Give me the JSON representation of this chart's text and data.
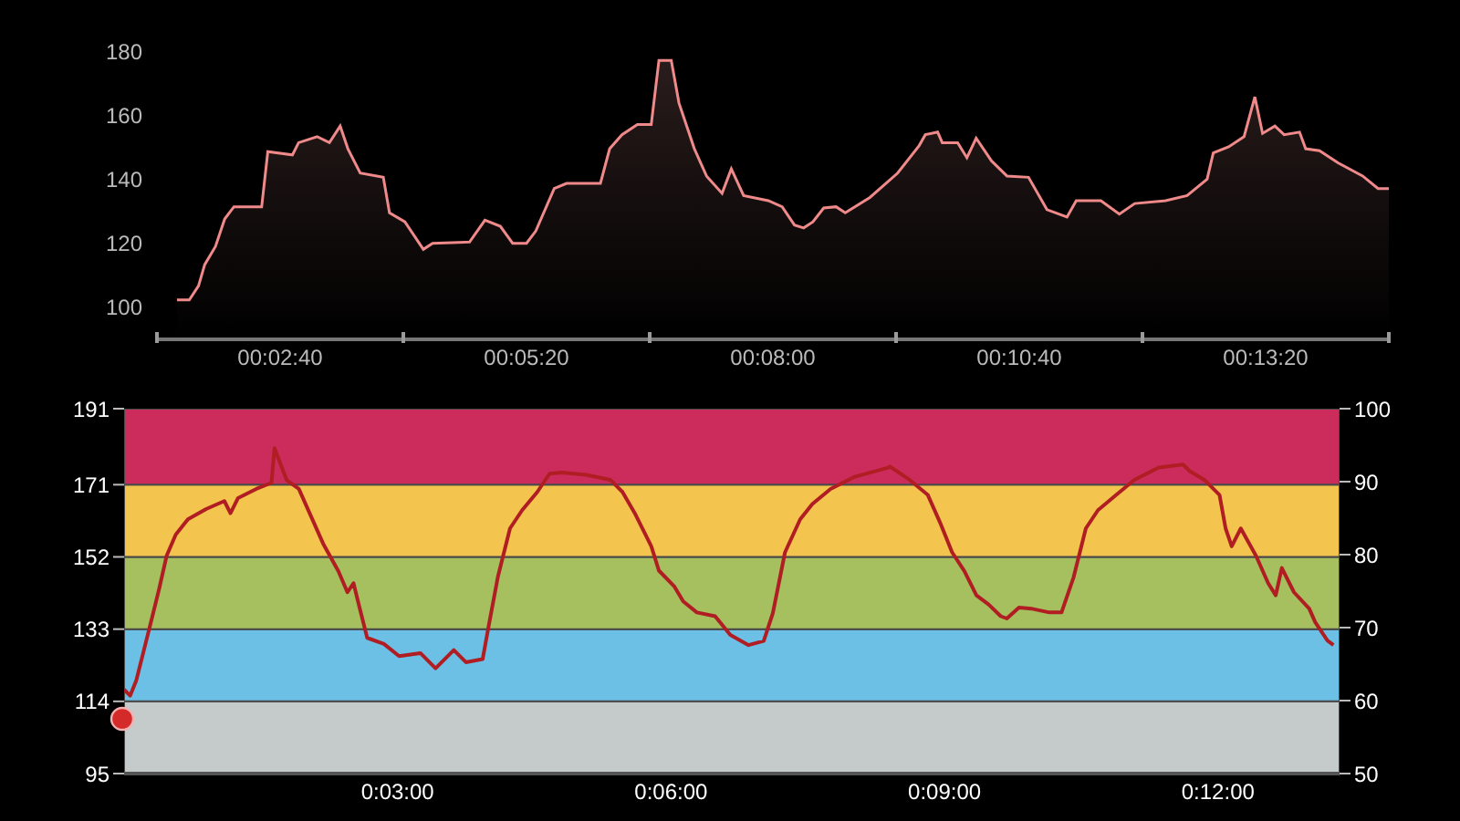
{
  "chart_data": [
    {
      "type": "area",
      "color": "#f08a8a",
      "x": [
        93,
        101,
        107,
        111,
        118,
        124,
        130,
        148,
        152,
        168,
        172,
        184,
        192,
        199,
        204,
        212,
        227,
        231,
        241,
        253,
        259,
        283,
        293,
        303,
        311,
        320,
        326,
        338,
        346,
        368,
        374,
        382,
        392,
        401,
        406,
        414,
        419,
        429,
        437,
        447,
        453,
        461,
        477,
        486,
        494,
        500,
        506,
        513,
        521,
        527,
        543,
        561,
        575,
        579,
        587,
        590,
        600,
        606,
        612,
        622,
        632,
        646,
        658,
        671,
        677,
        693,
        705,
        715,
        735,
        749,
        762,
        766,
        776,
        786,
        793,
        798,
        806,
        812,
        822,
        826,
        835,
        847,
        863,
        873,
        880
      ],
      "values": [
        102.3,
        102.3,
        106.7,
        113.3,
        119,
        127.6,
        131.4,
        131.4,
        148.6,
        147.6,
        151.4,
        153.3,
        151.4,
        156.6,
        149.5,
        141.9,
        140.6,
        129.5,
        126.7,
        118.1,
        120,
        120.4,
        127.2,
        125.3,
        120,
        120,
        123.8,
        137.1,
        138.7,
        138.7,
        149.5,
        153.9,
        157.1,
        157.1,
        177.1,
        177.1,
        163.8,
        149.5,
        140.9,
        135.6,
        143.2,
        134.9,
        133.3,
        131.4,
        125.7,
        124.8,
        126.7,
        131,
        131.4,
        129.5,
        134.3,
        141.9,
        150.5,
        153.9,
        154.7,
        151.4,
        151.4,
        146.7,
        152.8,
        145.7,
        141,
        140.6,
        130.5,
        128.2,
        133.3,
        133.3,
        129.1,
        132.4,
        133.3,
        134.9,
        140,
        148.2,
        150.1,
        153.3,
        165.7,
        154.3,
        156.6,
        153.9,
        154.7,
        149.5,
        148.9,
        145.1,
        141,
        137.1,
        137.1
      ],
      "xlim": [
        80,
        880
      ],
      "xticks": [
        {
          "value": 80,
          "label": null
        },
        {
          "value": 160,
          "label": "00:02:40"
        },
        {
          "value": 240,
          "label": null
        },
        {
          "value": 320,
          "label": "00:05:20"
        },
        {
          "value": 400,
          "label": null
        },
        {
          "value": 480,
          "label": "00:08:00"
        },
        {
          "value": 560,
          "label": null
        },
        {
          "value": 640,
          "label": "00:10:40"
        },
        {
          "value": 720,
          "label": null
        },
        {
          "value": 800,
          "label": "00:13:20"
        },
        {
          "value": 880,
          "label": null
        }
      ],
      "ylim": [
        90,
        180
      ],
      "yticks": [
        100,
        120,
        140,
        160,
        180
      ]
    },
    {
      "type": "line",
      "color": "#b01e23",
      "x": [
        0,
        4,
        8,
        14,
        18,
        23,
        28,
        34,
        42,
        54,
        66,
        70,
        75,
        87,
        97,
        99,
        107,
        115,
        123,
        131,
        141,
        147,
        151,
        155,
        160,
        171,
        181,
        195,
        205,
        217,
        225,
        236,
        240,
        246,
        254,
        262,
        272,
        280,
        288,
        304,
        320,
        328,
        336,
        347,
        352,
        362,
        368,
        377,
        389,
        399,
        411,
        421,
        427,
        435,
        445,
        453,
        465,
        481,
        503,
        504,
        517,
        529,
        537,
        545,
        553,
        561,
        569,
        577,
        581,
        589,
        597,
        609,
        617,
        625,
        633,
        641,
        653,
        665,
        681,
        697,
        701,
        711,
        721,
        725,
        729,
        735,
        745,
        753,
        758,
        762,
        770,
        780,
        784,
        792,
        796
      ],
      "values": [
        117.1,
        115.5,
        119.5,
        129,
        135.4,
        143.5,
        152.3,
        157.9,
        161.9,
        164.6,
        166.7,
        163.5,
        167.5,
        169.9,
        171.5,
        180.6,
        172.2,
        169.9,
        162.7,
        155.5,
        148.3,
        142.7,
        145.1,
        138.6,
        130.7,
        129.1,
        125.9,
        126.7,
        122.7,
        127.5,
        124.3,
        125.1,
        133.9,
        146.7,
        159.5,
        164.3,
        169.1,
        173.9,
        174.2,
        173.6,
        172.3,
        169.1,
        163.6,
        154.8,
        148.4,
        144.3,
        140.3,
        137.4,
        136.4,
        131.5,
        128.8,
        129.9,
        137.2,
        153.2,
        161.9,
        165.9,
        169.9,
        173.1,
        175.5,
        175.8,
        172.3,
        168.3,
        161.1,
        153.2,
        148.3,
        141.9,
        139.5,
        136.4,
        135.8,
        138.7,
        138.4,
        137.4,
        137.4,
        146.7,
        159.5,
        164.3,
        168.3,
        172.3,
        175.5,
        176.3,
        174.7,
        172.3,
        168.3,
        159.5,
        154.8,
        159.5,
        152.3,
        145.1,
        141.9,
        149.1,
        142.7,
        138.4,
        134.8,
        130,
        128.8
      ],
      "xlim": [
        0,
        800
      ],
      "xticks": [
        {
          "value": 180,
          "label": "0:03:00"
        },
        {
          "value": 360,
          "label": "0:06:00"
        },
        {
          "value": 540,
          "label": "0:09:00"
        },
        {
          "value": 720,
          "label": "0:12:00"
        }
      ],
      "ylim": [
        95,
        191
      ],
      "yticks": [
        95,
        114,
        133,
        152,
        171,
        191
      ],
      "y2lim": [
        50,
        100
      ],
      "y2ticks": [
        50,
        60,
        70,
        80,
        90,
        100
      ],
      "bands": [
        {
          "axis": "y",
          "from": 95,
          "to": 114,
          "color": "#c5cacb"
        },
        {
          "axis": "y",
          "from": 114,
          "to": 133,
          "color": "#6cc0e5"
        },
        {
          "axis": "y",
          "from": 133,
          "to": 152,
          "color": "#a6bf5f"
        },
        {
          "axis": "y",
          "from": 152,
          "to": 171,
          "color": "#f4c54e"
        },
        {
          "axis": "y",
          "from": 171,
          "to": 191,
          "color": "#cb2c5c"
        }
      ]
    }
  ]
}
